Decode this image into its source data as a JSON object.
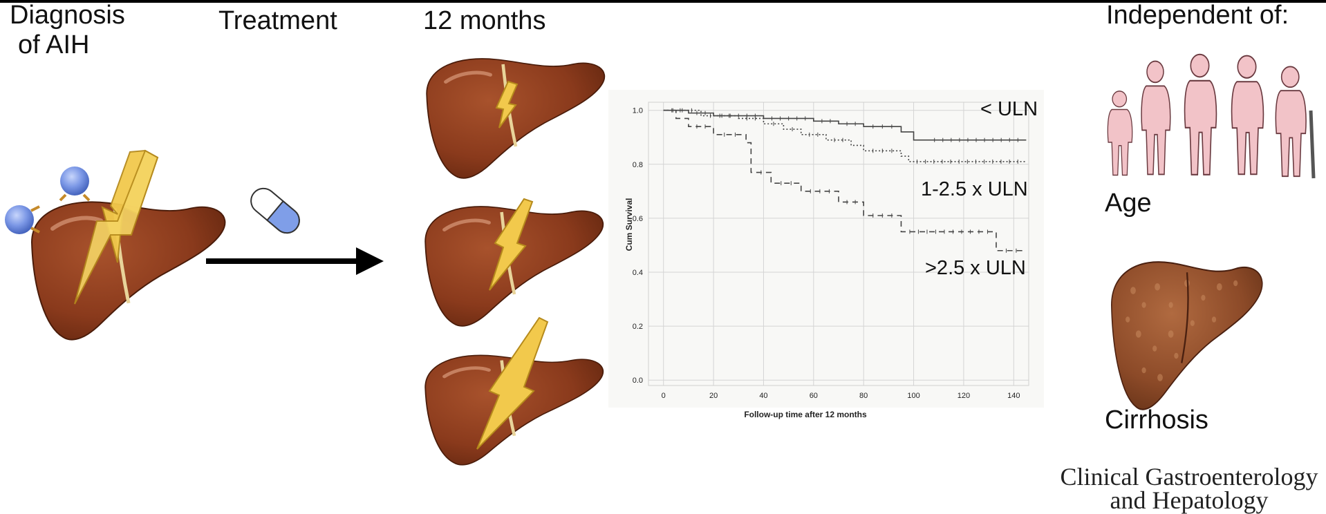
{
  "labels": {
    "diagnosis_line1": "Diagnosis",
    "diagnosis_line2": "of AIH",
    "treatment": "Treatment",
    "months": "12 months",
    "independent": "Independent  of:",
    "age": "Age",
    "cirrhosis": "Cirrhosis",
    "journal_line1": "Clinical Gastroenterology",
    "journal_line2": "and Hepatology"
  },
  "colors": {
    "liver": "#8a3a1c",
    "liver_dark": "#6b2810",
    "bolt": "#f2c94c",
    "cell": "#6f8ee0",
    "capsule": "#7f9ee8",
    "figure": "#f2c3c8"
  },
  "chart_data": {
    "type": "line",
    "ylabel": "Cum Survival",
    "xlabel": "Follow-up time after 12 months",
    "xlim": [
      -6,
      146
    ],
    "ylim": [
      -0.02,
      1.03
    ],
    "xticks": [
      0,
      20,
      40,
      60,
      80,
      100,
      120,
      140
    ],
    "yticks": [
      0.0,
      0.2,
      0.4,
      0.6,
      0.8,
      1.0
    ],
    "grid": true,
    "series": [
      {
        "name": "< ULN",
        "style": "solid",
        "x": [
          0,
          10,
          20,
          40,
          60,
          70,
          80,
          95,
          100,
          105,
          145
        ],
        "y": [
          1.0,
          0.99,
          0.98,
          0.97,
          0.96,
          0.95,
          0.94,
          0.92,
          0.89,
          0.89,
          0.89
        ]
      },
      {
        "name": "1-2.5 x ULN",
        "style": "dotted",
        "x": [
          0,
          15,
          30,
          40,
          48,
          55,
          65,
          75,
          80,
          95,
          98,
          145
        ],
        "y": [
          1.0,
          0.98,
          0.97,
          0.95,
          0.93,
          0.91,
          0.89,
          0.87,
          0.85,
          0.83,
          0.81,
          0.81
        ]
      },
      {
        "name": ">2.5 x ULN",
        "style": "dashed",
        "x": [
          0,
          5,
          10,
          20,
          33,
          35,
          43,
          55,
          70,
          80,
          95,
          133,
          145
        ],
        "y": [
          1.0,
          0.97,
          0.94,
          0.91,
          0.88,
          0.77,
          0.73,
          0.7,
          0.66,
          0.61,
          0.55,
          0.48,
          0.48
        ]
      }
    ]
  }
}
